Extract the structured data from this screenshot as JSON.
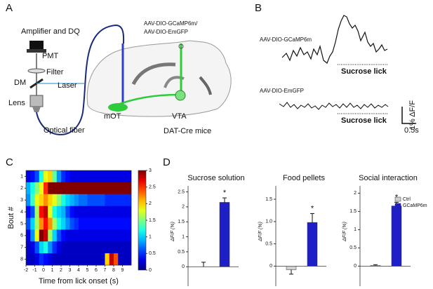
{
  "panel_a": {
    "label": "A",
    "amplifier": "Amplifier and DQ",
    "pmt": "PMT",
    "filter": "Filter",
    "dm": "DM",
    "laser": "Laser",
    "lens": "Lens",
    "fiber": "Optical fiber",
    "virus_1": "AAV-DIO-GCaMP6m/",
    "virus_2": "AAV-DIO-EmGFP",
    "region_1": "mOT",
    "region_2": "VTA",
    "mouse": "DAT-Cre mice"
  },
  "panel_b": {
    "label": "B",
    "trace_1": "AAV-DIO-GCaMP6m",
    "event_1": "Sucrose lick",
    "trace_2": "AAV-DIO-EmGFP",
    "event_2": "Sucrose lick",
    "scale_y": "1% ΔF/F",
    "scale_x": "0.5s"
  },
  "panel_c": {
    "label": "C"
  },
  "panel_d": {
    "label": "D"
  },
  "chart_data": [
    {
      "type": "heatmap",
      "xlabel": "Time from lick onset (s)",
      "ylabel": "Bout #",
      "bins": [
        -2,
        -1.5,
        -1,
        -0.5,
        0,
        0.5,
        1,
        1.5,
        2,
        2.5,
        3,
        3.5,
        4,
        4.5,
        5,
        5.5,
        6,
        6.5,
        7,
        7.5,
        8,
        8.5,
        9,
        9.5,
        10
      ],
      "xlim": [
        -2,
        10
      ],
      "xticks": [
        -2,
        -1,
        0,
        1,
        2,
        3,
        4,
        5,
        6,
        7,
        8,
        9
      ],
      "ylim": [
        0.5,
        8.5
      ],
      "yticks": [
        1,
        2,
        3,
        4,
        5,
        6,
        7,
        8
      ],
      "values": [
        [
          0.3,
          0.4,
          0.6,
          1.2,
          1.8,
          2.0,
          1.4,
          0.8,
          0.5,
          0.4,
          0.3,
          0.3,
          0.3,
          0.3,
          0.3,
          0.3,
          0.3,
          0.3,
          0.3,
          0.3,
          0.3,
          0.3,
          0.3,
          0.3
        ],
        [
          0.9,
          1.2,
          1.5,
          1.8,
          2.5,
          3,
          3,
          3,
          3,
          3,
          3,
          3,
          3,
          3,
          3,
          3,
          3,
          3,
          3,
          3,
          3,
          3,
          3,
          3
        ],
        [
          0.8,
          1.3,
          1.8,
          2.0,
          2.2,
          2.0,
          1.8,
          1.5,
          1.2,
          1.0,
          0.9,
          0.8,
          0.7,
          0.7,
          0.6,
          0.6,
          0.6,
          0.6,
          0.5,
          0.5,
          0.5,
          0.5,
          0.5,
          0.5
        ],
        [
          0.4,
          0.6,
          1.6,
          2.6,
          2.8,
          1.8,
          1.2,
          1.0,
          0.9,
          0.6,
          0.4,
          0.3,
          0.3,
          0.3,
          0.3,
          0.3,
          0.3,
          0.3,
          0.3,
          0.3,
          0.3,
          0.3,
          0.3,
          0.3
        ],
        [
          0.6,
          1.0,
          1.6,
          2.2,
          2.6,
          2.2,
          1.6,
          1.2,
          1.0,
          0.8,
          0.6,
          0.5,
          0.4,
          0.4,
          0.4,
          0.4,
          0.4,
          0.4,
          0.4,
          0.4,
          0.4,
          0.4,
          0.4,
          0.4
        ],
        [
          0.3,
          0.8,
          1.8,
          3.0,
          2.8,
          1.6,
          1.0,
          0.6,
          0.4,
          0.3,
          0.3,
          0.3,
          0.3,
          0.3,
          0.3,
          0.3,
          0.3,
          0.3,
          0.3,
          0.3,
          0.3,
          0.3,
          0.3,
          0.3
        ],
        [
          0.2,
          0.3,
          0.6,
          1.0,
          1.2,
          0.8,
          0.5,
          0.3,
          0.2,
          0.2,
          0.2,
          0.2,
          0.2,
          0.2,
          0.2,
          0.2,
          0.2,
          0.2,
          0.2,
          0.2,
          0.2,
          0.2,
          0.2,
          0.2
        ],
        [
          0.2,
          0.2,
          0.3,
          0.5,
          0.4,
          0.3,
          0.2,
          0.2,
          0.2,
          0.2,
          0.2,
          0.2,
          0.2,
          0.2,
          0.2,
          0.2,
          0.2,
          0.2,
          2.0,
          2.8,
          2.4,
          0.2,
          0.2,
          0.2
        ]
      ],
      "colormap": "jet",
      "zlim": [
        0,
        3
      ],
      "zticks": [
        0,
        0.5,
        1,
        1.5,
        2,
        2.5,
        3
      ]
    },
    {
      "type": "bar",
      "title": "Sucrose solution",
      "ylabel": "ΔF/F (%)",
      "ylim": [
        -0.65,
        2.7
      ],
      "yticks": [
        0,
        0.5,
        1,
        1.5,
        2,
        2.5
      ],
      "series": [
        {
          "color": "#d0d0d0",
          "values": [
            0.0
          ],
          "errors": [
            0.15
          ]
        },
        {
          "color": "#1f1fc8",
          "values": [
            2.15
          ],
          "errors": [
            0.15
          ]
        }
      ],
      "annotation": "*"
    },
    {
      "type": "bar",
      "title": "Food pellets",
      "ylabel": "ΔF/F (%)",
      "ylim": [
        -0.45,
        1.8
      ],
      "yticks": [
        0,
        0.5,
        {
          "value": 1,
          "label": "1.0"
        },
        1.5
      ],
      "series": [
        {
          "color": "#d0d0d0",
          "values": [
            -0.08
          ],
          "errors": [
            0.1
          ]
        },
        {
          "color": "#1f1fc8",
          "values": [
            0.98
          ],
          "errors": [
            0.2
          ]
        }
      ],
      "annotation": "*"
    },
    {
      "type": "bar",
      "title": "Social interaction",
      "ylabel": "ΔF/F (%)",
      "ylim": [
        -0.55,
        2.2
      ],
      "yticks": [
        0,
        0.5,
        1,
        1.5,
        2
      ],
      "series": [
        {
          "name": "Ctrl",
          "color": "#d0d0d0",
          "values": [
            0.02
          ],
          "errors": [
            0.02
          ]
        },
        {
          "name": "GCaMP6m",
          "color": "#1f1fc8",
          "values": [
            1.65
          ],
          "errors": [
            0.1
          ]
        }
      ],
      "legend": "upper right",
      "annotation": "*"
    }
  ]
}
